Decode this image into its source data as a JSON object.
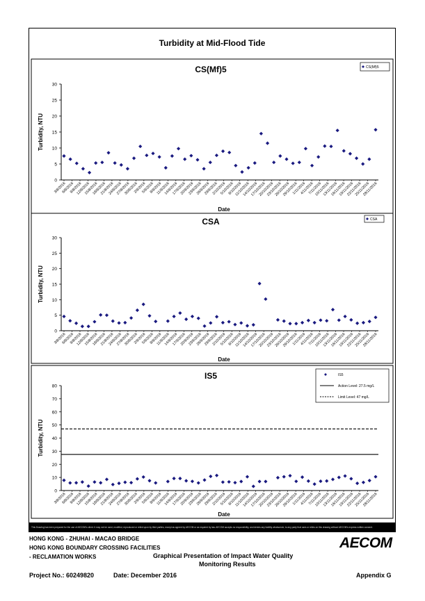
{
  "page": {
    "title": "Turbidity at Mid-Flood Tide",
    "disclaimer": "This Drawing has been prepared for the use of AECOM's client. It may not be used, modified, reproduced or relied upon by third parties, except as agreed by AECOM or as required by law. AECOM accepts no responsibility, and denies any liability whatsoever, to any party that uses or relies on this drawing without AECOM's express written consent.",
    "footer": {
      "line1": "HONG KONG - ZHUHAI - MACAO BRIDGE",
      "line2": "HONG KONG BOUNDARY CROSSING FACILITIES",
      "line3": "- RECLAMATION WORKS",
      "presentation_line1": "Graphical Presentation of Impact Water Quality",
      "presentation_line2": "Monitoring Results",
      "project": "Project No.: 60249820",
      "date": "Date: December 2016",
      "appendix": "Appendix G",
      "logo": "AECOM"
    }
  },
  "chart_data": [
    {
      "type": "scatter",
      "title": "CS(Mf)5",
      "xlabel": "Date",
      "ylabel": "Turbidity, NTU",
      "ylim": [
        0,
        30
      ],
      "yticks": [
        0,
        5,
        10,
        15,
        20,
        25,
        30
      ],
      "legend_position": "top-right",
      "series": [
        {
          "name": "CS(Mf)5",
          "color": "#1a1a80",
          "marker": "diamond",
          "values": [
            7.5,
            6.5,
            5.2,
            3.5,
            2.3,
            5.3,
            5.5,
            8.5,
            5.3,
            4.7,
            3.5,
            6.8,
            10.5,
            7.7,
            8.3,
            7.2,
            3.8,
            7.5,
            9.8,
            6.5,
            7.6,
            6.3,
            3.5,
            5.5,
            7.7,
            9,
            8.6,
            4.5,
            2.5,
            3.8,
            5.3,
            14.5,
            11.5,
            5.5,
            7.5,
            6.5,
            5.2,
            5.5,
            9.8,
            4.5,
            7.2,
            10.6,
            10.5,
            15.5,
            9.1,
            8.2,
            6.8,
            5,
            6.5,
            15.7
          ]
        }
      ]
    },
    {
      "type": "scatter",
      "title": "CSA",
      "xlabel": "Date",
      "ylabel": "Turbidity, NTU",
      "ylim": [
        0,
        30
      ],
      "yticks": [
        0,
        5,
        10,
        15,
        20,
        25,
        30
      ],
      "legend_position": "top-right",
      "series": [
        {
          "name": "CSA",
          "color": "#1a1a80",
          "marker": "diamond",
          "values": [
            4.6,
            3.2,
            2.4,
            1.4,
            1.4,
            2.9,
            5.1,
            5,
            3.1,
            2.5,
            2.6,
            4.1,
            6.6,
            8.5,
            4.8,
            3,
            null,
            3.1,
            4.6,
            5.7,
            3.7,
            4.6,
            4,
            1.5,
            2.5,
            4.5,
            2.6,
            2.9,
            2,
            2.5,
            1.6,
            1.9,
            15.2,
            10.2,
            null,
            3.5,
            3.1,
            2.3,
            2.3,
            2.6,
            3.3,
            2.6,
            3.4,
            3.2,
            6.8,
            3.4,
            4.6,
            3.5,
            2.4,
            2.6,
            3,
            4.3
          ]
        }
      ]
    },
    {
      "type": "scatter",
      "title": "IS5",
      "xlabel": "Date",
      "ylabel": "Turbidity, NTU",
      "ylim": [
        0,
        80
      ],
      "yticks": [
        0,
        10,
        20,
        30,
        40,
        50,
        60,
        70,
        80
      ],
      "legend_position": "top-right",
      "series": [
        {
          "name": "IS5",
          "color": "#1a1a80",
          "marker": "diamond",
          "values": [
            7.8,
            5.8,
            5.9,
            6.5,
            3.4,
            6.5,
            5.9,
            8.5,
            4.6,
            5.5,
            6.3,
            6,
            8.9,
            10.3,
            7.5,
            5.8,
            null,
            6.9,
            9.2,
            9.2,
            7.4,
            7,
            5.8,
            8,
            10.8,
            11.5,
            6.4,
            6.6,
            6,
            6.9,
            10.5,
            3.2,
            6.9,
            6.9,
            null,
            9.8,
            10.5,
            11.3,
            7,
            10.2,
            7.2,
            4.9,
            7.1,
            7.3,
            8.5,
            10,
            11.1,
            9,
            5.5,
            6.2,
            7.6,
            10.5
          ]
        },
        {
          "name": "Action Level: 27.5 mg/L",
          "type": "hline",
          "value": 27.5,
          "style": "solid",
          "color": "#000000"
        },
        {
          "name": "Limit Level: 47 mg/L",
          "type": "hline",
          "value": 47,
          "style": "dashed",
          "color": "#000000"
        }
      ]
    }
  ],
  "date_labels": [
    "3/8/2016",
    "6/8/2016",
    "9/8/2016",
    "12/8/2016",
    "15/8/2016",
    "18/8/2016",
    "21/8/2016",
    "24/8/2016",
    "27/8/2016",
    "30/8/2016",
    "2/9/2016",
    "5/9/2016",
    "8/9/2016",
    "11/9/2016",
    "14/9/2016",
    "17/9/2016",
    "20/9/2016",
    "23/9/2016",
    "26/9/2016",
    "29/9/2016",
    "2/10/2016",
    "5/10/2016",
    "8/10/2016",
    "11/10/2016",
    "14/10/2016",
    "17/10/2016",
    "20/10/2016",
    "23/10/2016",
    "26/10/2016",
    "29/10/2016",
    "1/11/2016",
    "4/11/2016",
    "7/11/2016",
    "10/11/2016",
    "13/11/2016",
    "16/11/2016",
    "19/11/2016",
    "22/11/2016",
    "25/11/2016",
    "28/11/2016"
  ]
}
